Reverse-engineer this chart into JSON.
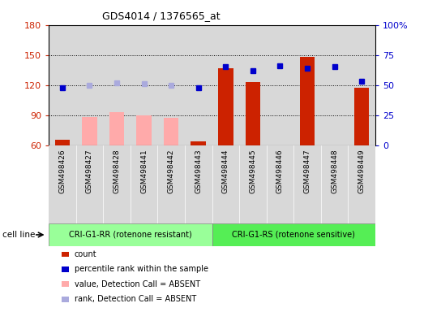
{
  "title": "GDS4014 / 1376565_at",
  "samples": [
    "GSM498426",
    "GSM498427",
    "GSM498428",
    "GSM498441",
    "GSM498442",
    "GSM498443",
    "GSM498444",
    "GSM498445",
    "GSM498446",
    "GSM498447",
    "GSM498448",
    "GSM498449"
  ],
  "group1_label": "CRI-G1-RR (rotenone resistant)",
  "group2_label": "CRI-G1-RS (rotenone sensitive)",
  "group1_count": 6,
  "group2_count": 6,
  "ylim_left": [
    60,
    180
  ],
  "ylim_right": [
    0,
    100
  ],
  "yticks_left": [
    60,
    90,
    120,
    150,
    180
  ],
  "yticks_right": [
    0,
    25,
    50,
    75,
    100
  ],
  "count_values": [
    65,
    null,
    null,
    null,
    null,
    64,
    137,
    123,
    null,
    148,
    null,
    117
  ],
  "count_absent_values": [
    null,
    88,
    93,
    90,
    87,
    null,
    null,
    null,
    null,
    null,
    null,
    null
  ],
  "percentile_rank": [
    48,
    null,
    null,
    null,
    null,
    48,
    65,
    62,
    66,
    64,
    65,
    53
  ],
  "percentile_rank_absent": [
    null,
    50,
    52,
    51,
    50,
    null,
    null,
    null,
    null,
    null,
    null,
    null
  ],
  "color_count": "#cc2200",
  "color_count_absent": "#ffaaaa",
  "color_rank": "#0000cc",
  "color_rank_absent": "#aaaadd",
  "bar_width": 0.55,
  "sample_bg": "#d8d8d8",
  "group_color1": "#99ff99",
  "group_color2": "#55ee55",
  "cell_line_label": "cell line",
  "legend_labels": [
    "count",
    "percentile rank within the sample",
    "value, Detection Call = ABSENT",
    "rank, Detection Call = ABSENT"
  ]
}
